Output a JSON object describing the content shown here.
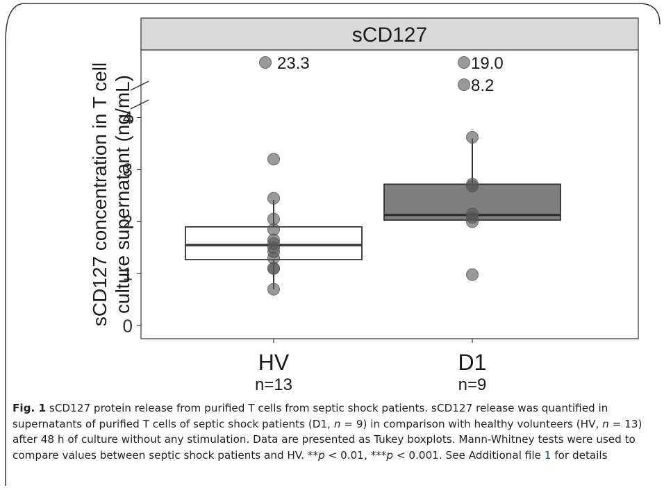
{
  "chart_data": {
    "type": "boxplot",
    "panel_title": "sCD127",
    "ylabel_line1": "sCD127 concentration in T cell",
    "ylabel_line2": "culture supernatant (ng/mL)",
    "yticks": [
      0,
      1,
      2,
      3,
      4
    ],
    "ylim": [
      -0.25,
      5.3
    ],
    "axis_break": true,
    "groups": [
      {
        "label": "HV",
        "n_label": "n=13",
        "fill": "#ffffff",
        "box": {
          "whisker_low": 0.7,
          "q1": 1.27,
          "median": 1.55,
          "q3": 1.9,
          "whisker_high": 2.42
        },
        "points": [
          0.7,
          1.1,
          1.1,
          1.3,
          1.42,
          1.5,
          1.58,
          1.65,
          1.85,
          2.05,
          2.45,
          3.2
        ],
        "outliers_above_break": [
          {
            "label": "23.3"
          }
        ]
      },
      {
        "label": "D1",
        "n_label": "n=9",
        "fill": "#7f7f7f",
        "box": {
          "whisker_low": 2.02,
          "q1": 2.03,
          "median": 2.13,
          "q3": 2.72,
          "whisker_high": 3.6
        },
        "points": [
          0.98,
          2.0,
          2.08,
          2.15,
          2.68,
          2.72,
          3.62
        ],
        "outliers_above_break": [
          {
            "label": "19.0"
          },
          {
            "label": "8.2"
          }
        ]
      }
    ]
  },
  "caption": {
    "fig_label": "Fig. 1",
    "title": " sCD127 protein release from purified T cells from septic shock patients.",
    "body_1": " sCD127 release was quantified in supernatants of purified T cells of septic shock patients (D1, ",
    "n": "n",
    "eq9": " = 9) in comparison with healthy volunteers (HV, ",
    "eq13": " = 13) after 48 h of culture without any stimulation. Data are presented as Tukey boxplots. Mann-Whitney tests were used to compare values between septic shock patients and HV. **",
    "p": "p",
    "p1": " < 0.01, ***",
    "p2": " < 0.001. See Additional file ",
    "file_link": "1",
    "end": " for details"
  },
  "colors": {
    "strip": "#d9d9d9",
    "point": "#555555",
    "frame_corner": "#333333"
  }
}
